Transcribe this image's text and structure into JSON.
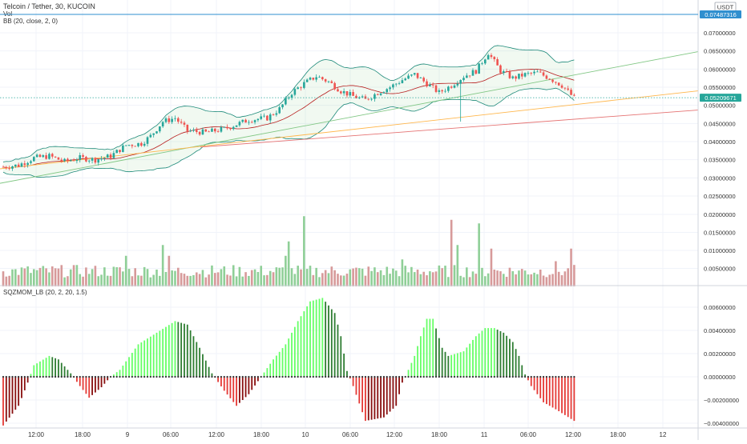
{
  "header": {
    "title": "Telcoin / Tether, 30, KUCOIN",
    "vol_label": "Vol",
    "bb_label": "BB (20, close, 2, 0)",
    "currency": "USDT",
    "top_price": "0.07487316",
    "last_price": "0.05209671"
  },
  "indicator": {
    "label": "SQZMOM_LB (20, 2, 20, 1.5)"
  },
  "x_axis": {
    "labels": [
      "12:00",
      "18:00",
      "9",
      "06:00",
      "12:00",
      "18:00",
      "10",
      "06:00",
      "12:00",
      "18:00",
      "11",
      "06:00",
      "12:00",
      "18:00",
      "12"
    ]
  },
  "colors": {
    "up": "#26a69a",
    "down": "#ef5350",
    "bb_band": "#4caf50",
    "bb_basis": "#b71c1c",
    "mom_lime": "#66ff66",
    "mom_green": "#2e7d32",
    "mom_red": "#e53935",
    "mom_maroon": "#880e0e"
  },
  "chart_data": [
    {
      "type": "candlestick",
      "title": "Telcoin / Tether, 30, KUCOIN",
      "ylabel": "USDT",
      "y_ticks": [
        "0.07000000",
        "0.06500000",
        "0.06000000",
        "0.05500000",
        "0.05000000",
        "0.04500000",
        "0.04000000",
        "0.03500000",
        "0.03000000",
        "0.02500000"
      ],
      "ylim": [
        0.0225,
        0.0765
      ],
      "last_price": 0.05209671,
      "top_level": 0.07487316,
      "anchors": [
        [
          0,
          0.033
        ],
        [
          5,
          0.0335
        ],
        [
          10,
          0.0355
        ],
        [
          15,
          0.036
        ],
        [
          20,
          0.0345
        ],
        [
          25,
          0.0355
        ],
        [
          30,
          0.035
        ],
        [
          35,
          0.036
        ],
        [
          40,
          0.039
        ],
        [
          45,
          0.0395
        ],
        [
          48,
          0.0415
        ],
        [
          52,
          0.0455
        ],
        [
          56,
          0.0465
        ],
        [
          60,
          0.043
        ],
        [
          66,
          0.0425
        ],
        [
          72,
          0.0435
        ],
        [
          80,
          0.046
        ],
        [
          86,
          0.0465
        ],
        [
          90,
          0.049
        ],
        [
          94,
          0.0535
        ],
        [
          98,
          0.056
        ],
        [
          102,
          0.058
        ],
        [
          106,
          0.0565
        ],
        [
          110,
          0.054
        ],
        [
          114,
          0.0525
        ],
        [
          118,
          0.0515
        ],
        [
          122,
          0.0535
        ],
        [
          126,
          0.055
        ],
        [
          130,
          0.057
        ],
        [
          134,
          0.0585
        ],
        [
          138,
          0.056
        ],
        [
          142,
          0.0535
        ],
        [
          146,
          0.0555
        ],
        [
          150,
          0.058
        ],
        [
          154,
          0.0595
        ],
        [
          158,
          0.0645
        ],
        [
          162,
          0.0595
        ],
        [
          166,
          0.0575
        ],
        [
          170,
          0.0585
        ],
        [
          174,
          0.059
        ],
        [
          178,
          0.0575
        ],
        [
          182,
          0.0555
        ],
        [
          186,
          0.052
        ]
      ],
      "spikes": [
        [
          149,
          0.0455
        ]
      ],
      "volume": {
        "y_ticks": [
          "0.02000000",
          "0.01500000",
          "0.01000000",
          "0.00500000"
        ],
        "ylim": [
          0,
          0.0205
        ]
      }
    },
    {
      "type": "bar",
      "title": "SQZMOM_LB (20, 2, 20, 1.5)",
      "y_ticks": [
        "0.00600000",
        "0.00400000",
        "0.00200000",
        "0.00000000",
        "-0.00200000",
        "-0.00400000"
      ],
      "ylim": [
        -0.0046,
        0.0075
      ],
      "anchors": [
        [
          0,
          -0.0042
        ],
        [
          5,
          -0.0025
        ],
        [
          8,
          -0.0005
        ],
        [
          10,
          0.001
        ],
        [
          15,
          0.0018
        ],
        [
          18,
          0.0015
        ],
        [
          22,
          0.0003
        ],
        [
          25,
          -0.0008
        ],
        [
          28,
          -0.0018
        ],
        [
          32,
          -0.0009
        ],
        [
          35,
          0.0
        ],
        [
          38,
          0.0006
        ],
        [
          44,
          0.0028
        ],
        [
          50,
          0.0038
        ],
        [
          56,
          0.0048
        ],
        [
          60,
          0.0045
        ],
        [
          64,
          0.0025
        ],
        [
          68,
          0.0003
        ],
        [
          72,
          -0.0012
        ],
        [
          76,
          -0.0025
        ],
        [
          80,
          -0.0015
        ],
        [
          84,
          0.0
        ],
        [
          88,
          0.0015
        ],
        [
          92,
          0.0028
        ],
        [
          96,
          0.0048
        ],
        [
          100,
          0.0065
        ],
        [
          104,
          0.0068
        ],
        [
          108,
          0.0055
        ],
        [
          110,
          0.0035
        ],
        [
          112,
          0.0005
        ],
        [
          114,
          -0.0008
        ],
        [
          118,
          -0.0038
        ],
        [
          124,
          -0.0035
        ],
        [
          128,
          -0.0025
        ],
        [
          130,
          -0.0005
        ],
        [
          132,
          0.0006
        ],
        [
          134,
          0.0018
        ],
        [
          136,
          0.0035
        ],
        [
          138,
          0.005
        ],
        [
          140,
          0.005
        ],
        [
          143,
          0.0025
        ],
        [
          145,
          0.0018
        ],
        [
          150,
          0.0022
        ],
        [
          154,
          0.0035
        ],
        [
          157,
          0.0042
        ],
        [
          160,
          0.0042
        ],
        [
          163,
          0.0038
        ],
        [
          166,
          0.003
        ],
        [
          168,
          0.0018
        ],
        [
          170,
          0.0002
        ],
        [
          172,
          -0.0008
        ],
        [
          176,
          -0.0022
        ],
        [
          180,
          -0.0028
        ],
        [
          183,
          -0.0033
        ],
        [
          186,
          -0.0038
        ]
      ]
    }
  ]
}
